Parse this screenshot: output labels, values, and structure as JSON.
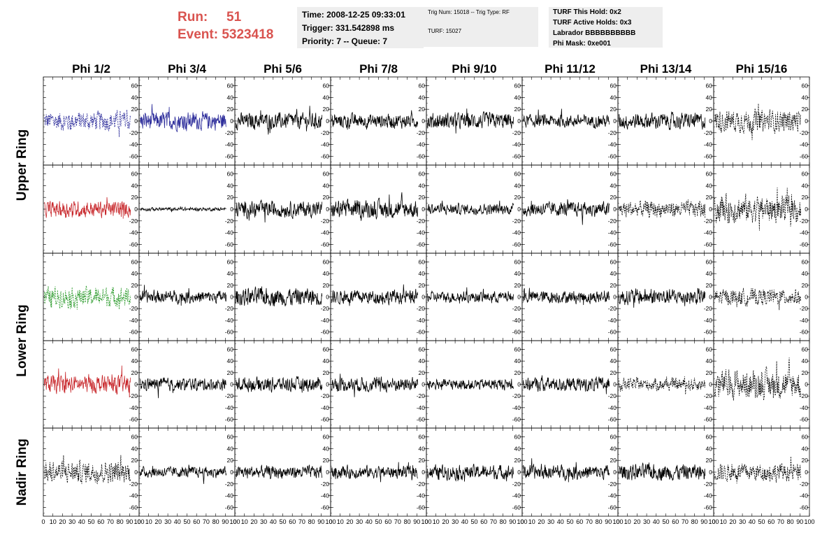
{
  "header": {
    "run_label": "Run:",
    "run_value": "51",
    "event_label": "Event:",
    "event_value": "5323418",
    "time_line": "Time: 2008-12-25 09:33:01",
    "trigger_line": "Trigger: 331.542898 ms",
    "priority_line": "Priority: 7 -- Queue: 7",
    "trig_num_line": "Trig Num: 15018 -- Trig Type: RF",
    "turf_line": "TURF: 15027",
    "turf_hold_line": "TURF This Hold: 0x2",
    "turf_active_line": "TURF Active Holds: 0x3",
    "labrador_line": "Labrador BBBBBBBBBB",
    "phi_mask_line": "Phi Mask: 0xe001"
  },
  "chart_data": {
    "type": "line",
    "title": "",
    "columns": [
      "Phi 1/2",
      "Phi 3/4",
      "Phi 5/6",
      "Phi 7/8",
      "Phi 9/10",
      "Phi 11/12",
      "Phi 13/14",
      "Phi 15/16"
    ],
    "rows": [
      "Upper Ring",
      "Lower Ring",
      "Nadir Ring"
    ],
    "subrows_per_ring": {
      "Upper Ring": 2,
      "Lower Ring": 2,
      "Nadir Ring": 1
    },
    "xlim": [
      0,
      100
    ],
    "ylim": [
      -75,
      75
    ],
    "x_ticks": [
      0,
      10,
      20,
      30,
      40,
      50,
      60,
      70,
      80,
      90,
      100
    ],
    "y_ticks": [
      -60,
      -40,
      -20,
      0,
      20,
      40,
      60
    ],
    "x_tick_labels": [
      "0",
      "10",
      "20",
      "30",
      "40",
      "50",
      "60",
      "70",
      "80",
      "90",
      "100"
    ],
    "y_tick_labels": [
      "-60",
      "-40",
      "-20",
      "0",
      "20",
      "40",
      "60"
    ],
    "trace_colors": {
      "black": "#000000",
      "blue": "#2b2b9a",
      "red": "#c8282c",
      "green": "#2a9a2a"
    },
    "panels": [
      [
        {
          "color": "blue",
          "dashed": true,
          "amp": 22
        },
        {
          "color": "blue",
          "dashed": false,
          "amp": 20
        },
        {
          "color": "black",
          "dashed": false,
          "amp": 18
        },
        {
          "color": "black",
          "dashed": false,
          "amp": 16
        },
        {
          "color": "black",
          "dashed": false,
          "amp": 18
        },
        {
          "color": "black",
          "dashed": false,
          "amp": 14
        },
        {
          "color": "black",
          "dashed": false,
          "amp": 18
        },
        {
          "color": "black",
          "dashed": true,
          "amp": 25
        }
      ],
      [
        {
          "color": "red",
          "dashed": false,
          "amp": 18
        },
        {
          "color": "black",
          "dashed": false,
          "amp": 4
        },
        {
          "color": "black",
          "dashed": false,
          "amp": 18
        },
        {
          "color": "black",
          "dashed": false,
          "amp": 20
        },
        {
          "color": "black",
          "dashed": false,
          "amp": 12
        },
        {
          "color": "black",
          "dashed": false,
          "amp": 16
        },
        {
          "color": "black",
          "dashed": true,
          "amp": 18
        },
        {
          "color": "black",
          "dashed": true,
          "amp": 30
        }
      ],
      [
        {
          "color": "green",
          "dashed": true,
          "amp": 22
        },
        {
          "color": "black",
          "dashed": false,
          "amp": 14
        },
        {
          "color": "black",
          "dashed": false,
          "amp": 20
        },
        {
          "color": "black",
          "dashed": false,
          "amp": 16
        },
        {
          "color": "black",
          "dashed": false,
          "amp": 12
        },
        {
          "color": "black",
          "dashed": false,
          "amp": 14
        },
        {
          "color": "black",
          "dashed": false,
          "amp": 18
        },
        {
          "color": "black",
          "dashed": true,
          "amp": 18
        }
      ],
      [
        {
          "color": "red",
          "dashed": false,
          "amp": 20
        },
        {
          "color": "black",
          "dashed": false,
          "amp": 14
        },
        {
          "color": "black",
          "dashed": false,
          "amp": 16
        },
        {
          "color": "black",
          "dashed": false,
          "amp": 16
        },
        {
          "color": "black",
          "dashed": false,
          "amp": 12
        },
        {
          "color": "black",
          "dashed": false,
          "amp": 16
        },
        {
          "color": "black",
          "dashed": true,
          "amp": 14
        },
        {
          "color": "black",
          "dashed": true,
          "amp": 32
        }
      ],
      [
        {
          "color": "black",
          "dashed": true,
          "amp": 24
        },
        {
          "color": "black",
          "dashed": false,
          "amp": 12
        },
        {
          "color": "black",
          "dashed": false,
          "amp": 14
        },
        {
          "color": "black",
          "dashed": false,
          "amp": 14
        },
        {
          "color": "black",
          "dashed": false,
          "amp": 16
        },
        {
          "color": "black",
          "dashed": false,
          "amp": 16
        },
        {
          "color": "black",
          "dashed": false,
          "amp": 18
        },
        {
          "color": "black",
          "dashed": true,
          "amp": 20
        }
      ]
    ]
  }
}
